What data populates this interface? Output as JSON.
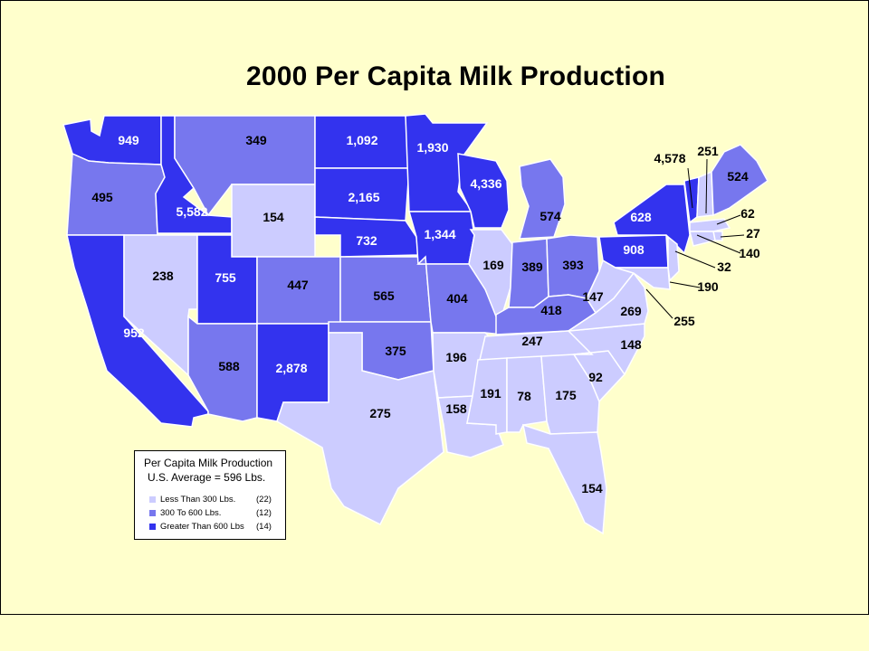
{
  "title": "2000 Per Capita Milk Production",
  "colors": {
    "background": "#FFFFCC",
    "low": "#CCCCFF",
    "mid": "#7777EE",
    "high": "#3333EE"
  },
  "legend": {
    "title": "Per Capita Milk Production",
    "subtitle": "U.S. Average = 596 Lbs.",
    "items": [
      {
        "label": "Less Than 300 Lbs.",
        "count": "(22)",
        "color": "#CCCCFF"
      },
      {
        "label": "300 To 600 Lbs.",
        "count": "(12)",
        "color": "#7777EE"
      },
      {
        "label": "Greater Than 600 Lbs",
        "count": "(14)",
        "color": "#3333EE"
      }
    ]
  },
  "states": [
    {
      "state": "WA",
      "value": "949",
      "category": "high"
    },
    {
      "state": "OR",
      "value": "495",
      "category": "mid"
    },
    {
      "state": "CA",
      "value": "952",
      "category": "high"
    },
    {
      "state": "ID",
      "value": "5,582",
      "category": "high"
    },
    {
      "state": "NV",
      "value": "238",
      "category": "low"
    },
    {
      "state": "MT",
      "value": "349",
      "category": "mid"
    },
    {
      "state": "WY",
      "value": "154",
      "category": "low"
    },
    {
      "state": "UT",
      "value": "755",
      "category": "high"
    },
    {
      "state": "AZ",
      "value": "588",
      "category": "mid"
    },
    {
      "state": "CO",
      "value": "447",
      "category": "mid"
    },
    {
      "state": "NM",
      "value": "2,878",
      "category": "high"
    },
    {
      "state": "ND",
      "value": "1,092",
      "category": "high"
    },
    {
      "state": "SD",
      "value": "2,165",
      "category": "high"
    },
    {
      "state": "NE",
      "value": "732",
      "category": "high"
    },
    {
      "state": "KS",
      "value": "565",
      "category": "mid"
    },
    {
      "state": "OK",
      "value": "375",
      "category": "mid"
    },
    {
      "state": "TX",
      "value": "275",
      "category": "low"
    },
    {
      "state": "MN",
      "value": "1,930",
      "category": "high"
    },
    {
      "state": "IA",
      "value": "1,344",
      "category": "high"
    },
    {
      "state": "MO",
      "value": "404",
      "category": "mid"
    },
    {
      "state": "AR",
      "value": "196",
      "category": "low"
    },
    {
      "state": "LA",
      "value": "158",
      "category": "low"
    },
    {
      "state": "WI",
      "value": "4,336",
      "category": "high"
    },
    {
      "state": "IL",
      "value": "169",
      "category": "low"
    },
    {
      "state": "MI",
      "value": "574",
      "category": "mid"
    },
    {
      "state": "IN",
      "value": "389",
      "category": "mid"
    },
    {
      "state": "OH",
      "value": "393",
      "category": "mid"
    },
    {
      "state": "KY",
      "value": "418",
      "category": "mid"
    },
    {
      "state": "TN",
      "value": "247",
      "category": "low"
    },
    {
      "state": "MS",
      "value": "191",
      "category": "low"
    },
    {
      "state": "AL",
      "value": "78",
      "category": "low"
    },
    {
      "state": "GA",
      "value": "175",
      "category": "low"
    },
    {
      "state": "FL",
      "value": "154",
      "category": "low"
    },
    {
      "state": "SC",
      "value": "92",
      "category": "low"
    },
    {
      "state": "NC",
      "value": "148",
      "category": "low"
    },
    {
      "state": "VA",
      "value": "269",
      "category": "low"
    },
    {
      "state": "WV",
      "value": "147",
      "category": "low"
    },
    {
      "state": "PA",
      "value": "908",
      "category": "high"
    },
    {
      "state": "NY",
      "value": "628",
      "category": "high"
    },
    {
      "state": "VT",
      "value": "4,578",
      "category": "high"
    },
    {
      "state": "NH",
      "value": "251",
      "category": "low"
    },
    {
      "state": "ME",
      "value": "524",
      "category": "mid"
    },
    {
      "state": "MA",
      "value": "62",
      "category": "low"
    },
    {
      "state": "RI",
      "value": "27",
      "category": "low"
    },
    {
      "state": "CT",
      "value": "140",
      "category": "low"
    },
    {
      "state": "NJ",
      "value": "32",
      "category": "low"
    },
    {
      "state": "DE",
      "value": "190",
      "category": "low"
    },
    {
      "state": "MD",
      "value": "255",
      "category": "low"
    }
  ]
}
